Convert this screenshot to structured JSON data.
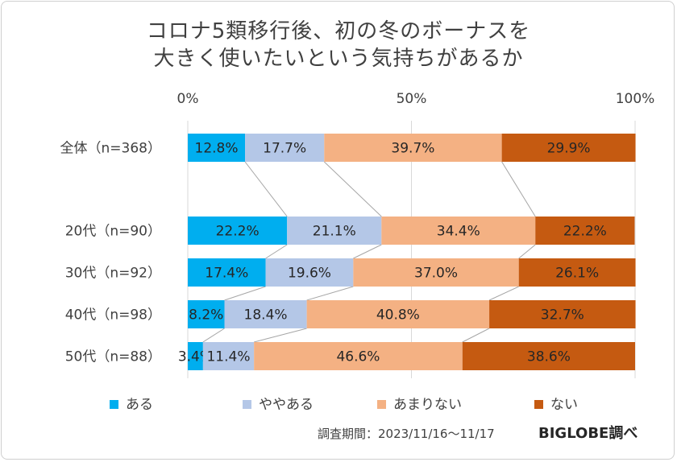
{
  "chart_data": {
    "type": "bar",
    "orientation": "horizontal",
    "stacked": "100%",
    "title": [
      "コロナ5類移行後、初の冬のボーナスを",
      "大きく使いたいという気持ちがあるか"
    ],
    "xlim": [
      0,
      100
    ],
    "x_ticks": [
      "0%",
      "50%",
      "100%"
    ],
    "categories": [
      "全体（n=368）",
      "20代（n=90）",
      "30代（n=92）",
      "40代（n=98）",
      "50代（n=88）"
    ],
    "series": [
      {
        "name": "ある",
        "values": [
          12.8,
          22.2,
          17.4,
          8.2,
          3.4
        ],
        "labels": [
          "12.8%",
          "22.2%",
          "17.4%",
          "8.2%",
          "3.4%"
        ],
        "color": "#00AEEF"
      },
      {
        "name": "ややある",
        "values": [
          17.7,
          21.1,
          19.6,
          18.4,
          11.4
        ],
        "labels": [
          "17.7%",
          "21.1%",
          "19.6%",
          "18.4%",
          "11.4%"
        ],
        "color": "#B4C7E7"
      },
      {
        "name": "あまりない",
        "values": [
          39.7,
          34.4,
          37.0,
          40.8,
          46.6
        ],
        "labels": [
          "39.7%",
          "34.4%",
          "37.0%",
          "40.8%",
          "46.6%"
        ],
        "color": "#F4B183"
      },
      {
        "name": "ない",
        "values": [
          29.9,
          22.2,
          26.1,
          32.7,
          38.6
        ],
        "labels": [
          "29.9%",
          "22.2%",
          "26.1%",
          "32.7%",
          "38.6%"
        ],
        "color": "#C55A11"
      }
    ],
    "legend_position": "bottom",
    "grid": true,
    "series_lines": true
  },
  "footer": {
    "note": "調査期間：2023/11/16〜11/17",
    "brand": "BIGLOBE調べ"
  }
}
